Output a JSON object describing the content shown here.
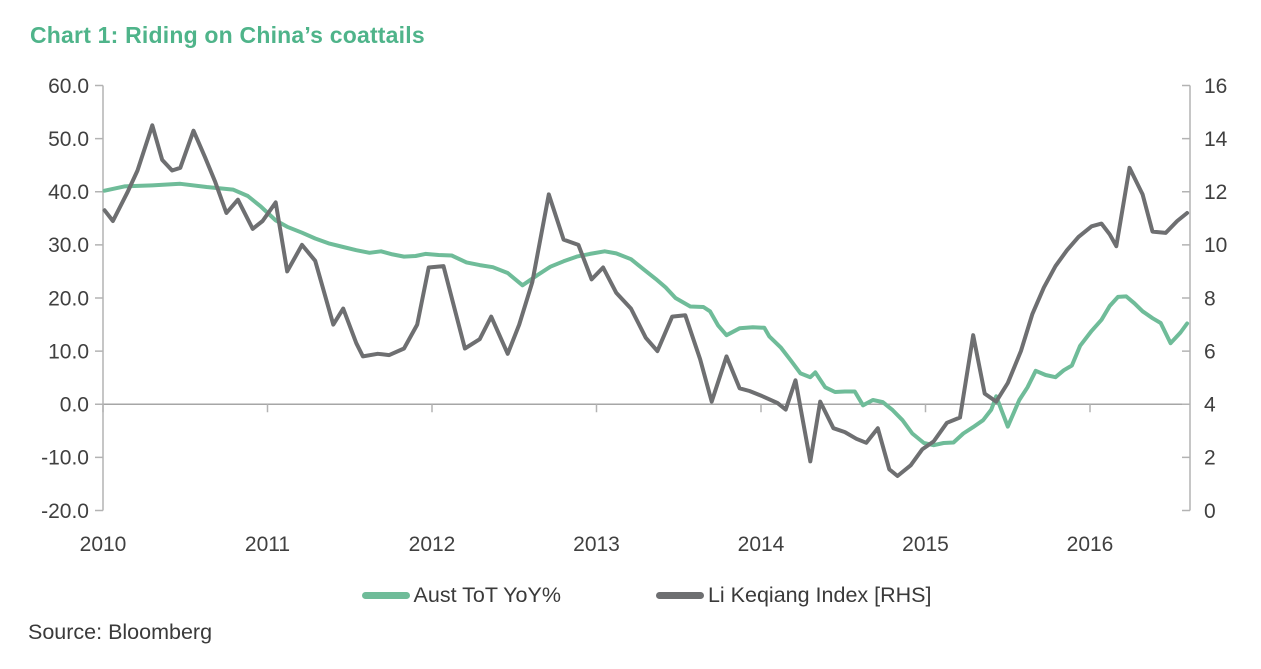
{
  "title": "Chart 1: Riding on China’s coattails",
  "source": "Source: Bloomberg",
  "colors": {
    "title_green": "#4FB48A",
    "series_green": "#6FBC99",
    "series_gray": "#6E6F71",
    "axis_line": "#B3B3B3",
    "gridline": "#A6A6A6",
    "tick_text": "#404040",
    "body_text": "#3A3A3A",
    "background": "#FFFFFF"
  },
  "legend": {
    "items": [
      {
        "label": "Aust ToT YoY%",
        "color": "#6FBC99"
      },
      {
        "label": "Li Keqiang Index [RHS]",
        "color": "#6E6F71"
      }
    ]
  },
  "chart_data": {
    "type": "line",
    "title": "Chart 1: Riding on China’s coattails",
    "grid": "zero-line-only",
    "legend_position": "bottom",
    "x_axis": {
      "tick_labels": [
        "2010",
        "2011",
        "2012",
        "2013",
        "2014",
        "2015",
        "2016"
      ],
      "range_years": [
        2010.0,
        2016.61
      ]
    },
    "y_left": {
      "tick_labels": [
        "60.0",
        "50.0",
        "40.0",
        "30.0",
        "20.0",
        "10.0",
        "0.0",
        "-10.0",
        "-20.0"
      ],
      "min": -20,
      "max": 60
    },
    "y_right": {
      "tick_labels": [
        "16",
        "14",
        "12",
        "10",
        "8",
        "6",
        "4",
        "2",
        "0"
      ],
      "min": 0,
      "max": 16
    },
    "series": [
      {
        "name": "Aust ToT YoY%",
        "axis": "left",
        "color": "#6FBC99",
        "x": [
          2010.01,
          2010.13,
          2010.3,
          2010.47,
          2010.63,
          2010.79,
          2010.88,
          2010.96,
          2011.05,
          2011.12,
          2011.21,
          2011.29,
          2011.37,
          2011.46,
          2011.54,
          2011.62,
          2011.69,
          2011.76,
          2011.83,
          2011.9,
          2011.96,
          2012.04,
          2012.12,
          2012.21,
          2012.29,
          2012.37,
          2012.46,
          2012.55,
          2012.64,
          2012.72,
          2012.8,
          2012.88,
          2012.96,
          2013.05,
          2013.12,
          2013.21,
          2013.29,
          2013.36,
          2013.42,
          2013.48,
          2013.57,
          2013.65,
          2013.69,
          2013.74,
          2013.79,
          2013.87,
          2013.95,
          2014.02,
          2014.05,
          2014.12,
          2014.18,
          2014.24,
          2014.3,
          2014.33,
          2014.39,
          2014.45,
          2014.51,
          2014.57,
          2014.62,
          2014.68,
          2014.74,
          2014.8,
          2014.86,
          2014.92,
          2014.99,
          2015.05,
          2015.11,
          2015.17,
          2015.23,
          2015.29,
          2015.35,
          2015.4,
          2015.43,
          2015.5,
          2015.57,
          2015.62,
          2015.67,
          2015.73,
          2015.79,
          2015.84,
          2015.89,
          2015.94,
          2016.01,
          2016.07,
          2016.12,
          2016.17,
          2016.22,
          2016.27,
          2016.32,
          2016.38,
          2016.43,
          2016.49,
          2016.55,
          2016.59
        ],
        "y": [
          40.2,
          41.0,
          41.2,
          41.5,
          40.9,
          40.4,
          39.2,
          37.2,
          34.6,
          33.4,
          32.3,
          31.2,
          30.3,
          29.6,
          29.0,
          28.5,
          28.8,
          28.2,
          27.8,
          27.9,
          28.3,
          28.1,
          28.0,
          26.7,
          26.2,
          25.8,
          24.7,
          22.4,
          24.3,
          25.9,
          26.9,
          27.8,
          28.3,
          28.8,
          28.4,
          27.3,
          25.3,
          23.6,
          22.0,
          20.0,
          18.4,
          18.3,
          17.5,
          14.8,
          13.0,
          14.3,
          14.5,
          14.4,
          12.8,
          10.7,
          8.3,
          5.8,
          5.1,
          6.0,
          3.2,
          2.3,
          2.4,
          2.4,
          -0.2,
          0.8,
          0.4,
          -1.1,
          -3.0,
          -5.5,
          -7.3,
          -7.7,
          -7.3,
          -7.2,
          -5.5,
          -4.3,
          -3.0,
          -1.0,
          1.5,
          -4.2,
          0.8,
          3.2,
          6.3,
          5.5,
          5.1,
          6.4,
          7.3,
          11.0,
          13.8,
          15.9,
          18.5,
          20.2,
          20.3,
          19.0,
          17.5,
          16.2,
          15.3,
          11.5,
          13.5,
          15.2
        ]
      },
      {
        "name": "Li Keqiang Index [RHS]",
        "axis": "right",
        "color": "#6E6F71",
        "x": [
          2010.01,
          2010.06,
          2010.15,
          2010.21,
          2010.3,
          2010.36,
          2010.42,
          2010.47,
          2010.55,
          2010.62,
          2010.68,
          2010.75,
          2010.82,
          2010.91,
          2010.97,
          2011.05,
          2011.12,
          2011.21,
          2011.29,
          2011.4,
          2011.46,
          2011.54,
          2011.58,
          2011.67,
          2011.74,
          2011.83,
          2011.91,
          2011.98,
          2012.07,
          2012.2,
          2012.29,
          2012.36,
          2012.46,
          2012.53,
          2012.61,
          2012.71,
          2012.8,
          2012.89,
          2012.97,
          2013.04,
          2013.12,
          2013.21,
          2013.3,
          2013.37,
          2013.46,
          2013.54,
          2013.63,
          2013.7,
          2013.79,
          2013.87,
          2013.93,
          2014.01,
          2014.1,
          2014.15,
          2014.21,
          2014.3,
          2014.36,
          2014.44,
          2014.51,
          2014.58,
          2014.64,
          2014.71,
          2014.78,
          2014.83,
          2014.91,
          2014.98,
          2015.05,
          2015.13,
          2015.21,
          2015.29,
          2015.36,
          2015.43,
          2015.5,
          2015.58,
          2015.65,
          2015.72,
          2015.79,
          2015.86,
          2015.93,
          2016.01,
          2016.07,
          2016.12,
          2016.16,
          2016.24,
          2016.32,
          2016.38,
          2016.46,
          2016.53,
          2016.59
        ],
        "y": [
          11.3,
          10.9,
          12.0,
          12.8,
          14.5,
          13.2,
          12.8,
          12.9,
          14.3,
          13.3,
          12.4,
          11.2,
          11.7,
          10.6,
          10.9,
          11.6,
          9.0,
          10.0,
          9.4,
          7.0,
          7.6,
          6.3,
          5.8,
          5.9,
          5.85,
          6.1,
          7.0,
          9.15,
          9.2,
          6.1,
          6.45,
          7.3,
          5.9,
          7.0,
          8.6,
          11.9,
          10.2,
          10.0,
          8.7,
          9.15,
          8.2,
          7.6,
          6.5,
          6.0,
          7.3,
          7.35,
          5.7,
          4.1,
          5.8,
          4.6,
          4.5,
          4.3,
          4.05,
          3.8,
          4.9,
          1.85,
          4.1,
          3.1,
          2.95,
          2.7,
          2.55,
          3.1,
          1.55,
          1.3,
          1.7,
          2.3,
          2.6,
          3.3,
          3.5,
          6.6,
          4.4,
          4.1,
          4.8,
          6.0,
          7.4,
          8.4,
          9.2,
          9.8,
          10.3,
          10.7,
          10.8,
          10.4,
          9.95,
          12.9,
          11.9,
          10.5,
          10.45,
          10.9,
          11.2
        ]
      }
    ]
  }
}
